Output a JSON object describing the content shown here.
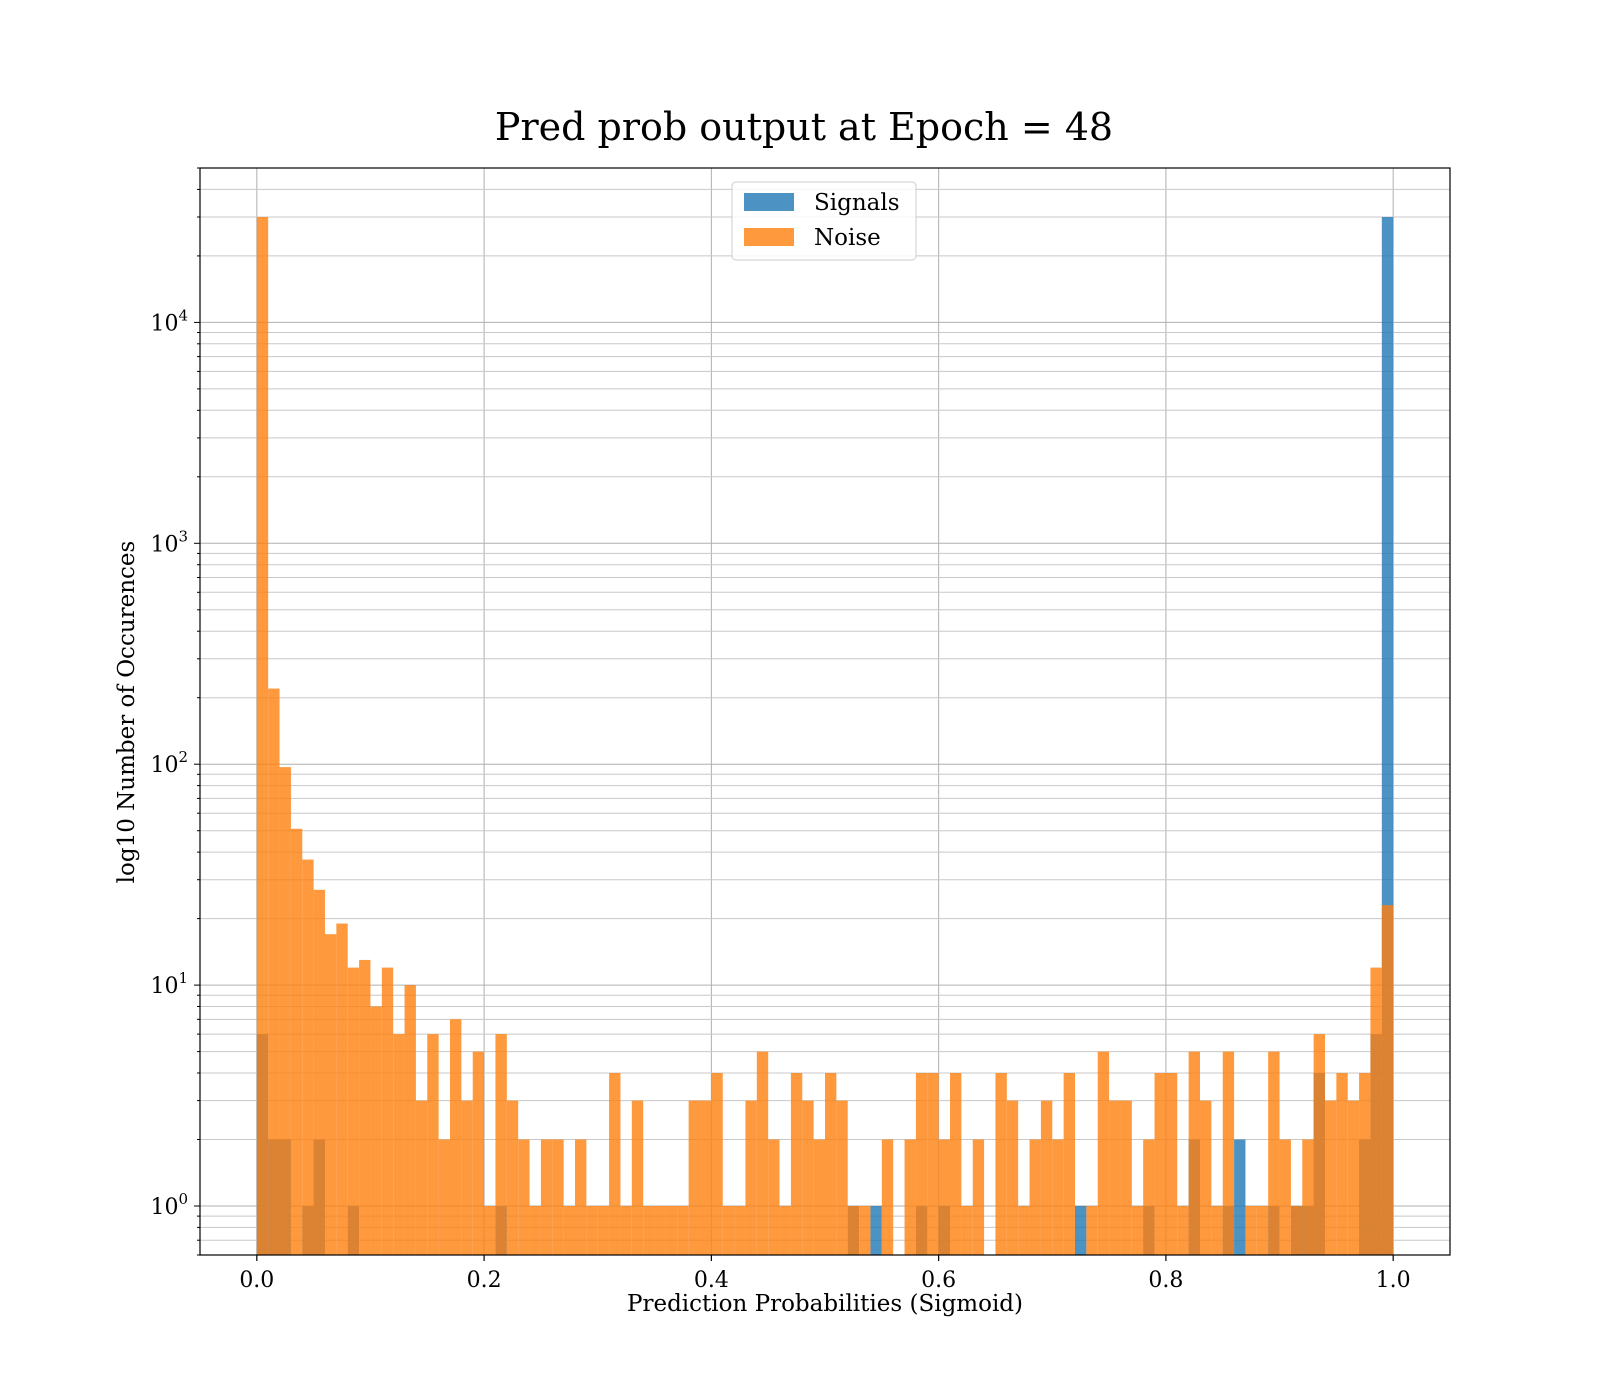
{
  "chart_data": {
    "type": "bar",
    "title": "Pred prob output at Epoch = 48",
    "xlabel": "Prediction Probabilities (Sigmoid)",
    "ylabel": "log10 Number of Occurences",
    "xlim": [
      -0.05,
      1.05
    ],
    "ylim": [
      0.6,
      50000
    ],
    "yscale": "log",
    "grid": true,
    "legend": "upper center",
    "bin_width": 0.01,
    "x_ticks": [
      {
        "value": 0.0,
        "label": "0.0"
      },
      {
        "value": 0.2,
        "label": "0.2"
      },
      {
        "value": 0.4,
        "label": "0.4"
      },
      {
        "value": 0.6,
        "label": "0.6"
      },
      {
        "value": 0.8,
        "label": "0.8"
      },
      {
        "value": 1.0,
        "label": "1.0"
      }
    ],
    "y_ticks": [
      {
        "value": 1,
        "base": "10",
        "exp": "0"
      },
      {
        "value": 10,
        "base": "10",
        "exp": "1"
      },
      {
        "value": 100,
        "base": "10",
        "exp": "2"
      },
      {
        "value": 1000,
        "base": "10",
        "exp": "3"
      },
      {
        "value": 10000,
        "base": "10",
        "exp": "4"
      }
    ],
    "series": [
      {
        "name": "Signals",
        "color": "#1f77b4",
        "bins": [
          {
            "x": 0.0,
            "y": 6
          },
          {
            "x": 0.01,
            "y": 2
          },
          {
            "x": 0.02,
            "y": 2
          },
          {
            "x": 0.04,
            "y": 1
          },
          {
            "x": 0.05,
            "y": 2
          },
          {
            "x": 0.08,
            "y": 1
          },
          {
            "x": 0.21,
            "y": 1
          },
          {
            "x": 0.52,
            "y": 1
          },
          {
            "x": 0.54,
            "y": 1
          },
          {
            "x": 0.58,
            "y": 1
          },
          {
            "x": 0.6,
            "y": 1
          },
          {
            "x": 0.72,
            "y": 1
          },
          {
            "x": 0.78,
            "y": 1
          },
          {
            "x": 0.82,
            "y": 2
          },
          {
            "x": 0.85,
            "y": 1
          },
          {
            "x": 0.86,
            "y": 2
          },
          {
            "x": 0.89,
            "y": 1
          },
          {
            "x": 0.91,
            "y": 1
          },
          {
            "x": 0.92,
            "y": 1
          },
          {
            "x": 0.93,
            "y": 4
          },
          {
            "x": 0.97,
            "y": 2
          },
          {
            "x": 0.98,
            "y": 6
          },
          {
            "x": 0.99,
            "y": 30000
          }
        ]
      },
      {
        "name": "Noise",
        "color": "#ff7f0e",
        "bins": [
          {
            "x": 0.0,
            "y": 30000
          },
          {
            "x": 0.01,
            "y": 220
          },
          {
            "x": 0.02,
            "y": 97
          },
          {
            "x": 0.03,
            "y": 51
          },
          {
            "x": 0.04,
            "y": 37
          },
          {
            "x": 0.05,
            "y": 27
          },
          {
            "x": 0.06,
            "y": 17
          },
          {
            "x": 0.07,
            "y": 19
          },
          {
            "x": 0.08,
            "y": 12
          },
          {
            "x": 0.09,
            "y": 13
          },
          {
            "x": 0.1,
            "y": 8
          },
          {
            "x": 0.11,
            "y": 12
          },
          {
            "x": 0.12,
            "y": 6
          },
          {
            "x": 0.13,
            "y": 10
          },
          {
            "x": 0.14,
            "y": 3
          },
          {
            "x": 0.15,
            "y": 6
          },
          {
            "x": 0.16,
            "y": 2
          },
          {
            "x": 0.17,
            "y": 7
          },
          {
            "x": 0.18,
            "y": 3
          },
          {
            "x": 0.19,
            "y": 5
          },
          {
            "x": 0.2,
            "y": 1
          },
          {
            "x": 0.21,
            "y": 6
          },
          {
            "x": 0.22,
            "y": 3
          },
          {
            "x": 0.23,
            "y": 2
          },
          {
            "x": 0.24,
            "y": 1
          },
          {
            "x": 0.25,
            "y": 2
          },
          {
            "x": 0.26,
            "y": 2
          },
          {
            "x": 0.27,
            "y": 1
          },
          {
            "x": 0.28,
            "y": 2
          },
          {
            "x": 0.29,
            "y": 1
          },
          {
            "x": 0.3,
            "y": 1
          },
          {
            "x": 0.31,
            "y": 4
          },
          {
            "x": 0.32,
            "y": 1
          },
          {
            "x": 0.33,
            "y": 3
          },
          {
            "x": 0.34,
            "y": 1
          },
          {
            "x": 0.35,
            "y": 1
          },
          {
            "x": 0.36,
            "y": 1
          },
          {
            "x": 0.37,
            "y": 1
          },
          {
            "x": 0.38,
            "y": 3
          },
          {
            "x": 0.39,
            "y": 3
          },
          {
            "x": 0.4,
            "y": 4
          },
          {
            "x": 0.41,
            "y": 1
          },
          {
            "x": 0.42,
            "y": 1
          },
          {
            "x": 0.43,
            "y": 3
          },
          {
            "x": 0.44,
            "y": 5
          },
          {
            "x": 0.45,
            "y": 2
          },
          {
            "x": 0.46,
            "y": 1
          },
          {
            "x": 0.47,
            "y": 4
          },
          {
            "x": 0.48,
            "y": 3
          },
          {
            "x": 0.49,
            "y": 2
          },
          {
            "x": 0.5,
            "y": 4
          },
          {
            "x": 0.51,
            "y": 3
          },
          {
            "x": 0.52,
            "y": 1
          },
          {
            "x": 0.53,
            "y": 1
          },
          {
            "x": 0.55,
            "y": 2
          },
          {
            "x": 0.57,
            "y": 2
          },
          {
            "x": 0.58,
            "y": 4
          },
          {
            "x": 0.59,
            "y": 4
          },
          {
            "x": 0.6,
            "y": 2
          },
          {
            "x": 0.61,
            "y": 4
          },
          {
            "x": 0.62,
            "y": 1
          },
          {
            "x": 0.63,
            "y": 2
          },
          {
            "x": 0.65,
            "y": 4
          },
          {
            "x": 0.66,
            "y": 3
          },
          {
            "x": 0.67,
            "y": 1
          },
          {
            "x": 0.68,
            "y": 2
          },
          {
            "x": 0.69,
            "y": 3
          },
          {
            "x": 0.7,
            "y": 2
          },
          {
            "x": 0.71,
            "y": 4
          },
          {
            "x": 0.73,
            "y": 1
          },
          {
            "x": 0.74,
            "y": 5
          },
          {
            "x": 0.75,
            "y": 3
          },
          {
            "x": 0.76,
            "y": 3
          },
          {
            "x": 0.77,
            "y": 1
          },
          {
            "x": 0.78,
            "y": 2
          },
          {
            "x": 0.79,
            "y": 4
          },
          {
            "x": 0.8,
            "y": 4
          },
          {
            "x": 0.81,
            "y": 1
          },
          {
            "x": 0.82,
            "y": 5
          },
          {
            "x": 0.83,
            "y": 3
          },
          {
            "x": 0.84,
            "y": 1
          },
          {
            "x": 0.85,
            "y": 5
          },
          {
            "x": 0.87,
            "y": 1
          },
          {
            "x": 0.88,
            "y": 1
          },
          {
            "x": 0.89,
            "y": 5
          },
          {
            "x": 0.9,
            "y": 2
          },
          {
            "x": 0.91,
            "y": 1
          },
          {
            "x": 0.92,
            "y": 2
          },
          {
            "x": 0.93,
            "y": 6
          },
          {
            "x": 0.94,
            "y": 3
          },
          {
            "x": 0.95,
            "y": 4
          },
          {
            "x": 0.96,
            "y": 3
          },
          {
            "x": 0.97,
            "y": 4
          },
          {
            "x": 0.98,
            "y": 12
          },
          {
            "x": 0.99,
            "y": 23
          }
        ]
      }
    ]
  }
}
